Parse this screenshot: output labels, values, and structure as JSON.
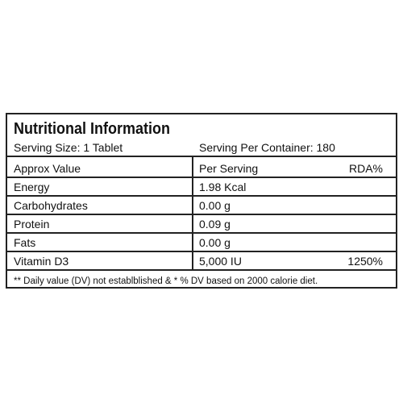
{
  "header": {
    "title": "Nutritional Information",
    "serving_size": "Serving Size: 1 Tablet",
    "servings_per_container": "Serving Per Container: 180"
  },
  "table": {
    "columns": [
      "Approx Value",
      "Per Serving",
      "RDA%"
    ],
    "rows": [
      [
        "Energy",
        "1.98 Kcal"
      ],
      [
        "Carbohydrates",
        "0.00 g"
      ],
      [
        "Protein",
        "0.09 g"
      ],
      [
        "Fats",
        "0.00 g"
      ],
      [
        "Vitamin D3",
        "5,000 IU",
        "1250%"
      ]
    ]
  },
  "footnote": "** Daily value (DV) not establblished & * % DV based on 2000 calorie diet."
}
